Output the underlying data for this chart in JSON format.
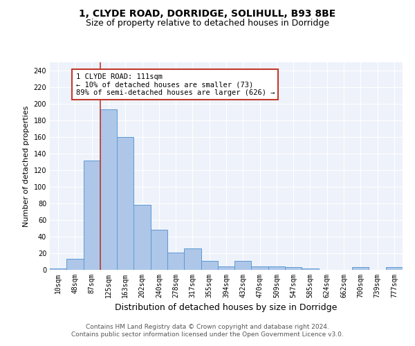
{
  "title": "1, CLYDE ROAD, DORRIDGE, SOLIHULL, B93 8BE",
  "subtitle": "Size of property relative to detached houses in Dorridge",
  "xlabel": "Distribution of detached houses by size in Dorridge",
  "ylabel": "Number of detached properties",
  "bar_labels": [
    "10sqm",
    "48sqm",
    "87sqm",
    "125sqm",
    "163sqm",
    "202sqm",
    "240sqm",
    "278sqm",
    "317sqm",
    "355sqm",
    "394sqm",
    "432sqm",
    "470sqm",
    "509sqm",
    "547sqm",
    "585sqm",
    "624sqm",
    "662sqm",
    "700sqm",
    "739sqm",
    "777sqm"
  ],
  "bar_values": [
    2,
    13,
    132,
    193,
    160,
    78,
    48,
    21,
    26,
    11,
    4,
    11,
    4,
    4,
    3,
    2,
    0,
    0,
    3,
    0,
    3
  ],
  "bar_color": "#aec6e8",
  "bar_edge_color": "#5b9bd5",
  "vline_color": "#c0392b",
  "annotation_text": "1 CLYDE ROAD: 111sqm\n← 10% of detached houses are smaller (73)\n89% of semi-detached houses are larger (626) →",
  "annotation_box_color": "white",
  "annotation_box_edge": "#c0392b",
  "ylim": [
    0,
    250
  ],
  "yticks": [
    0,
    20,
    40,
    60,
    80,
    100,
    120,
    140,
    160,
    180,
    200,
    220,
    240
  ],
  "background_color": "#eef2fa",
  "footer_line1": "Contains HM Land Registry data © Crown copyright and database right 2024.",
  "footer_line2": "Contains public sector information licensed under the Open Government Licence v3.0.",
  "title_fontsize": 10,
  "subtitle_fontsize": 9,
  "xlabel_fontsize": 9,
  "ylabel_fontsize": 8,
  "tick_fontsize": 7,
  "footer_fontsize": 6.5,
  "annotation_fontsize": 7.5
}
